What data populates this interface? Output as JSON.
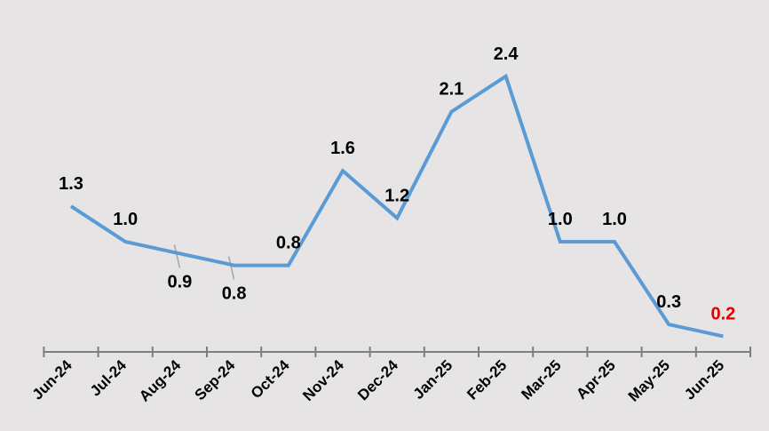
{
  "chart_data": {
    "type": "line",
    "title": "",
    "xlabel": "",
    "ylabel": "",
    "categories": [
      "Jun-24",
      "Jul-24",
      "Aug-24",
      "Sep-24",
      "Oct-24",
      "Nov-24",
      "Dec-24",
      "Jan-25",
      "Feb-25",
      "Mar-25",
      "Apr-25",
      "May-25",
      "Jun-25"
    ],
    "series": [
      {
        "values": [
          1.3,
          1.0,
          0.9,
          0.8,
          0.8,
          1.6,
          1.2,
          2.1,
          2.4,
          1.0,
          1.0,
          0.3,
          0.2
        ],
        "labels": [
          "1.3",
          "1.0",
          "0.9",
          "0.8",
          "0.8",
          "1.6",
          "1.2",
          "2.1",
          "2.4",
          "1.0",
          "1.0",
          "0.3",
          "0.2"
        ],
        "color": "#5b9bd5"
      }
    ],
    "highlight_label_color": "#e00000",
    "label_color": "#000000",
    "grid": false,
    "legend": "none",
    "background": "#e6e4e5",
    "axis_color": "#7f7f7f"
  }
}
